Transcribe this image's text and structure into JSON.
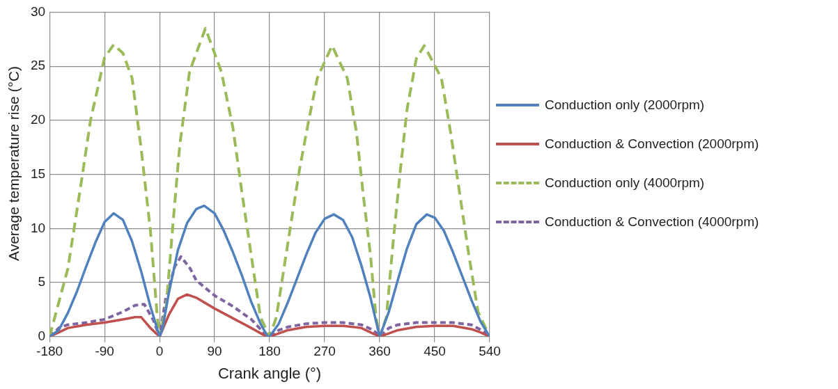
{
  "chart_data": {
    "type": "line",
    "xlabel": "Crank angle (°)",
    "ylabel": "Average temperature rise (°C)",
    "xlim": [
      -180,
      540
    ],
    "xticks": [
      -180,
      -90,
      0,
      90,
      180,
      270,
      360,
      450,
      540
    ],
    "ylim": [
      0,
      30
    ],
    "yticks": [
      0,
      5,
      10,
      15,
      20,
      25,
      30
    ],
    "grid": true,
    "legend": "right",
    "marker": "none",
    "series": [
      {
        "name": "Conduction only (2000rpm)",
        "color": "#4f81bd",
        "line_style": "solid",
        "x": [
          -180,
          -165,
          -150,
          -135,
          -120,
          -105,
          -90,
          -75,
          -60,
          -45,
          -30,
          -15,
          0,
          5,
          15,
          30,
          45,
          60,
          73,
          90,
          105,
          120,
          135,
          150,
          165,
          177,
          180,
          195,
          210,
          225,
          240,
          255,
          270,
          285,
          300,
          315,
          330,
          345,
          360,
          375,
          390,
          405,
          420,
          437,
          450,
          465,
          480,
          495,
          510,
          525,
          540
        ],
        "values": [
          0,
          0.6,
          2.2,
          4.2,
          6.5,
          8.7,
          10.6,
          11.4,
          10.8,
          8.8,
          6,
          2.8,
          0,
          0.8,
          4,
          8,
          10.5,
          11.8,
          12.1,
          11.4,
          9.8,
          7.8,
          5.6,
          3.2,
          1.2,
          0,
          0,
          1.2,
          3.2,
          5.4,
          7.6,
          9.6,
          10.9,
          11.3,
          10.8,
          9.2,
          6.6,
          3.6,
          0,
          2.3,
          5.3,
          8.2,
          10.4,
          11.3,
          11,
          9.8,
          7.8,
          5.6,
          3.4,
          1.4,
          0
        ]
      },
      {
        "name": "Conduction & Convection (2000rpm)",
        "color": "#c0504d",
        "line_style": "solid",
        "x": [
          -180,
          -165,
          -150,
          -120,
          -90,
          -60,
          -40,
          -30,
          -15,
          0,
          15,
          30,
          45,
          60,
          90,
          120,
          150,
          175,
          180,
          195,
          210,
          240,
          270,
          300,
          330,
          345,
          360,
          375,
          390,
          420,
          450,
          480,
          510,
          525,
          540
        ],
        "values": [
          0,
          0.4,
          0.8,
          1.1,
          1.3,
          1.6,
          1.8,
          1.8,
          0.8,
          0,
          2,
          3.5,
          3.9,
          3.6,
          2.6,
          1.7,
          0.8,
          0,
          0,
          0.3,
          0.6,
          0.9,
          1,
          1,
          0.8,
          0.4,
          0,
          0.3,
          0.6,
          0.9,
          1,
          1,
          0.7,
          0.4,
          0
        ]
      },
      {
        "name": "Conduction only (4000rpm)",
        "color": "#9bbb59",
        "line_style": "dashed",
        "x": [
          -180,
          -150,
          -128,
          -113,
          -90,
          -75,
          -60,
          -45,
          -30,
          -15,
          -4,
          0,
          11,
          22,
          33,
          49,
          75,
          101,
          120,
          135,
          150,
          165,
          180,
          191,
          210,
          229,
          244,
          258,
          282,
          307,
          322,
          333,
          345,
          354,
          360,
          371,
          382,
          394,
          405,
          420,
          433,
          461,
          476,
          491,
          506,
          521,
          540
        ],
        "values": [
          0,
          6.3,
          14.3,
          20,
          25.8,
          27,
          26.2,
          23.9,
          17.3,
          9.8,
          2,
          0,
          2.9,
          10.5,
          17.7,
          24.5,
          28.5,
          24.5,
          19.3,
          13.2,
          7.5,
          1.8,
          0,
          1.8,
          8.7,
          15.5,
          20,
          23.9,
          26.9,
          23.9,
          18.9,
          13.2,
          7.5,
          1.8,
          0,
          1.8,
          8.7,
          15.5,
          21.1,
          25.7,
          26.9,
          23.9,
          18.9,
          13.2,
          7.5,
          2.3,
          0
        ]
      },
      {
        "name": "Conduction & Convection (4000rpm)",
        "color": "#8064a2",
        "line_style": "dashed",
        "x": [
          -180,
          -165,
          -150,
          -120,
          -90,
          -60,
          -40,
          -25,
          -10,
          0,
          10,
          25,
          35,
          50,
          60,
          90,
          120,
          150,
          175,
          180,
          195,
          210,
          240,
          270,
          300,
          330,
          350,
          360,
          375,
          390,
          420,
          450,
          480,
          510,
          530,
          540
        ],
        "values": [
          0,
          0.8,
          1.1,
          1.3,
          1.6,
          2.3,
          2.9,
          3,
          1.5,
          0,
          3.5,
          6.5,
          7.4,
          6.3,
          5.2,
          3.8,
          2.8,
          1.6,
          0.1,
          0,
          0.6,
          0.9,
          1.2,
          1.3,
          1.3,
          1.1,
          0.6,
          0,
          0.8,
          1.1,
          1.3,
          1.3,
          1.3,
          1.1,
          0.5,
          0
        ]
      }
    ]
  }
}
